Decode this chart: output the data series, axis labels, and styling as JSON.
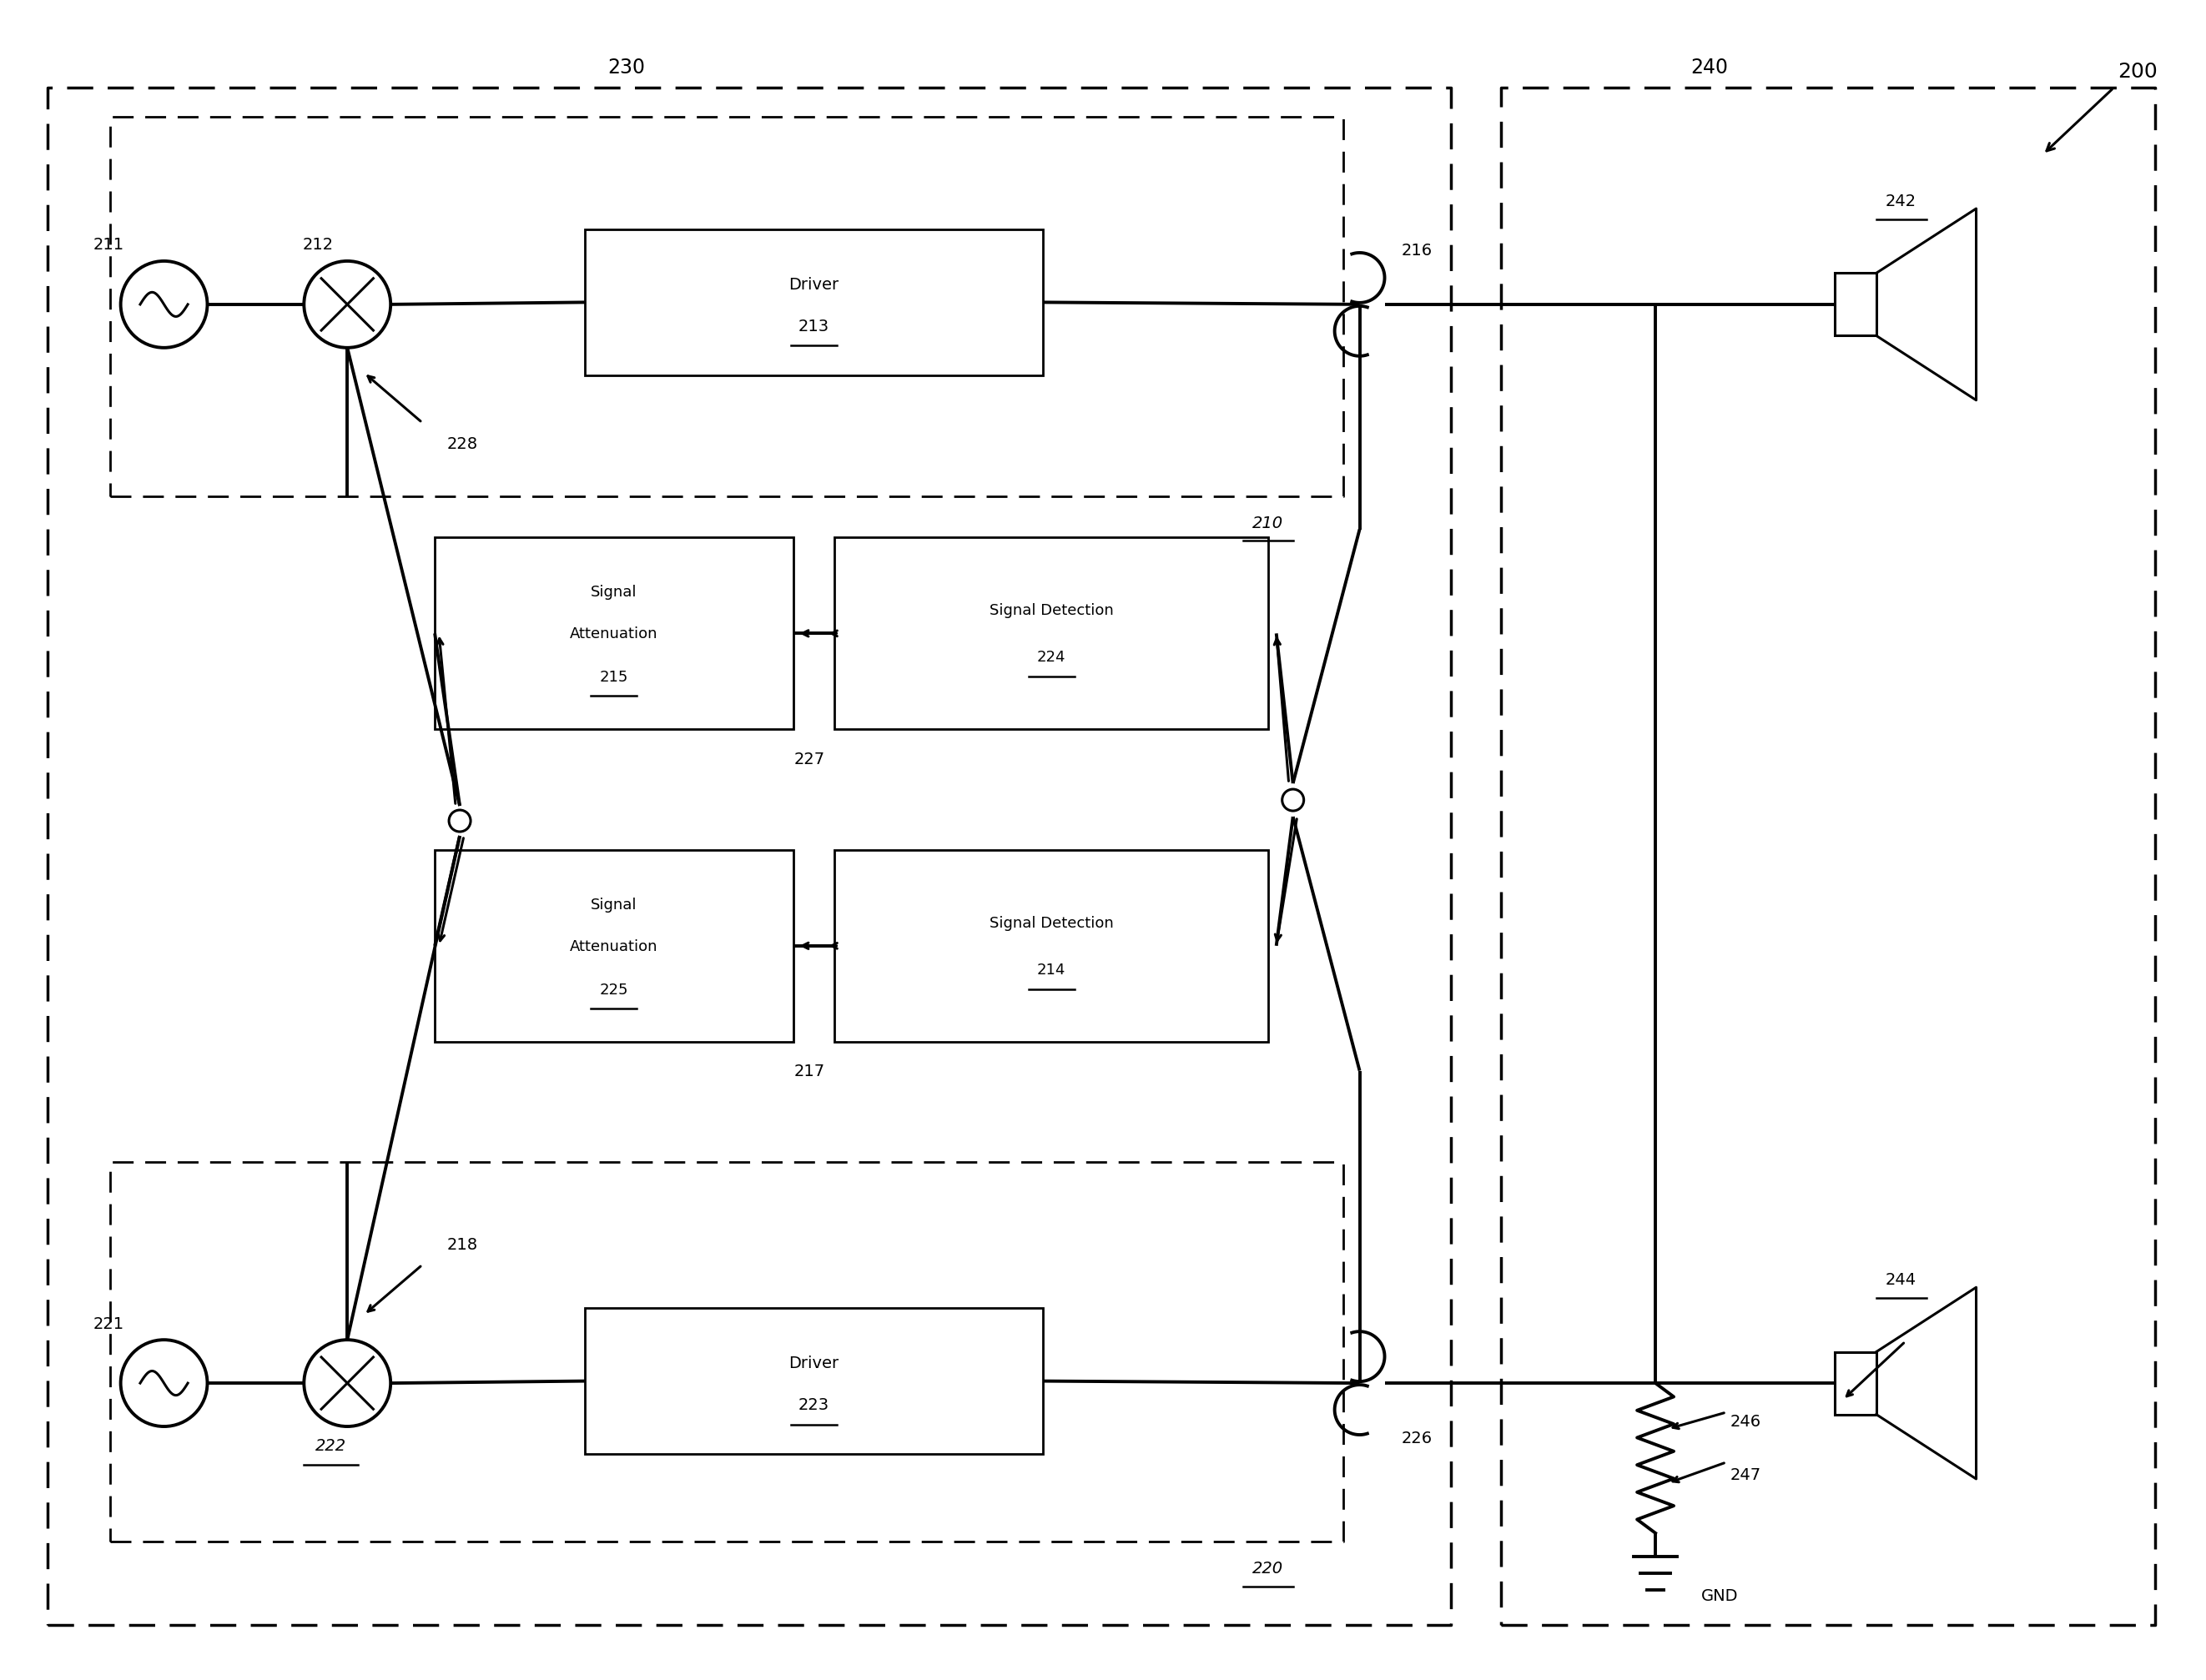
{
  "bg": "#ffffff",
  "lc": "#000000",
  "fw": 26.44,
  "fh": 20.15,
  "dpi": 100,
  "lbl": {
    "200": "200",
    "230": "230",
    "240": "240",
    "211": "211",
    "212": "212",
    "216": "216",
    "242": "242",
    "221": "221",
    "222": "222",
    "226": "226",
    "244": "244",
    "210": "210",
    "220": "220",
    "d213a": "Driver",
    "d213b": "213",
    "d223a": "Driver",
    "d223b": "223",
    "sa215a": "Signal",
    "sa215b": "Attenuation",
    "sa215c": "215",
    "sd224a": "Signal Detection",
    "sd224b": "224",
    "sa225a": "Signal",
    "sa225b": "Attenuation",
    "sa225c": "225",
    "sd214a": "Signal Detection",
    "sd214b": "214",
    "228": "228",
    "218": "218",
    "227": "227",
    "217": "217",
    "246": "246",
    "247": "247",
    "GND": "GND"
  }
}
